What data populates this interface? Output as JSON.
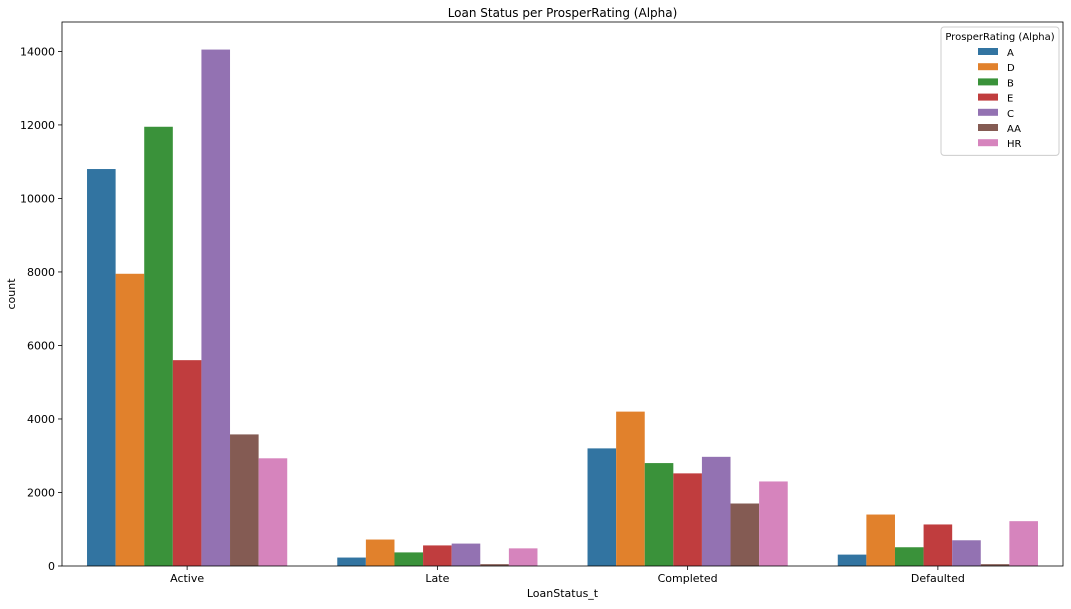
{
  "chart_data": {
    "type": "bar",
    "title": "Loan Status per ProsperRating (Alpha)",
    "xlabel": "LoanStatus_t",
    "ylabel": "count",
    "ylim": [
      0,
      14800
    ],
    "yticks": [
      0,
      2000,
      4000,
      6000,
      8000,
      10000,
      12000,
      14000
    ],
    "grid": false,
    "legend_position": "top-right",
    "legend_title": "ProsperRating (Alpha)",
    "categories": [
      "Active",
      "Late",
      "Completed",
      "Defaulted"
    ],
    "series": [
      {
        "name": "A",
        "color": "#3274a1",
        "values": [
          10800,
          230,
          3200,
          310
        ]
      },
      {
        "name": "D",
        "color": "#e1812c",
        "values": [
          7950,
          720,
          4200,
          1400
        ]
      },
      {
        "name": "B",
        "color": "#3a923a",
        "values": [
          11950,
          370,
          2800,
          510
        ]
      },
      {
        "name": "E",
        "color": "#c03d3e",
        "values": [
          5600,
          560,
          2520,
          1130
        ]
      },
      {
        "name": "C",
        "color": "#9372b2",
        "values": [
          14050,
          610,
          2970,
          700
        ]
      },
      {
        "name": "AA",
        "color": "#845b53",
        "values": [
          3580,
          50,
          1700,
          50
        ]
      },
      {
        "name": "HR",
        "color": "#d684bd",
        "values": [
          2930,
          480,
          2300,
          1220
        ]
      }
    ]
  }
}
